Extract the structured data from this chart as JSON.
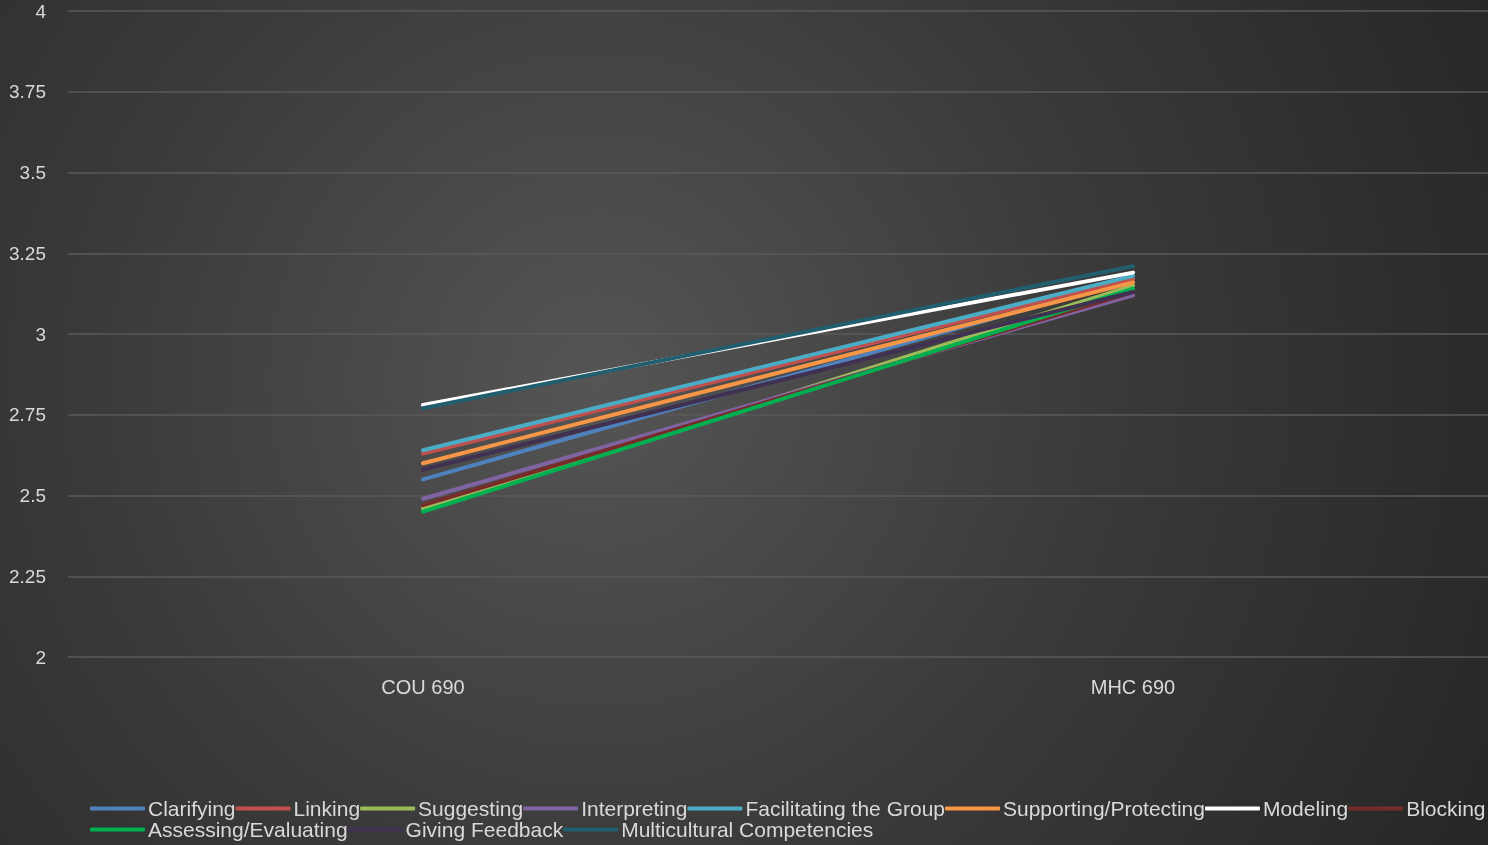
{
  "chart_data": {
    "type": "line",
    "categories": [
      "COU 690",
      "MHC 690"
    ],
    "series": [
      {
        "name": "Clarifying",
        "color": "#4f81bd",
        "values": [
          2.55,
          3.17
        ]
      },
      {
        "name": "Linking",
        "color": "#c0504d",
        "values": [
          2.63,
          3.17
        ]
      },
      {
        "name": "Suggesting",
        "color": "#9bbb59",
        "values": [
          2.46,
          3.15
        ]
      },
      {
        "name": "Interpreting",
        "color": "#8064a2",
        "values": [
          2.49,
          3.12
        ]
      },
      {
        "name": "Facilitating the Group",
        "color": "#4bacc6",
        "values": [
          2.64,
          3.18
        ]
      },
      {
        "name": "Supporting/Protecting",
        "color": "#f79646",
        "values": [
          2.6,
          3.16
        ]
      },
      {
        "name": "Modeling",
        "color": "#ffffff",
        "values": [
          2.78,
          3.19
        ]
      },
      {
        "name": "Blocking",
        "color": "#772c2a",
        "values": [
          2.47,
          3.13
        ]
      },
      {
        "name": "Assessing/Evaluating",
        "color": "#00b050",
        "values": [
          2.45,
          3.14
        ]
      },
      {
        "name": "Giving Feedback",
        "color": "#403152",
        "values": [
          2.58,
          3.13
        ]
      },
      {
        "name": "Multicultural Competencies",
        "color": "#215f6e",
        "values": [
          2.77,
          3.21
        ]
      }
    ],
    "ylim": [
      2,
      4
    ],
    "yticks": [
      2,
      2.25,
      2.5,
      2.75,
      3,
      3.25,
      3.5,
      3.75,
      4
    ],
    "grid": "y",
    "legend": "bottom",
    "marker": "none",
    "line_style": "solid"
  }
}
